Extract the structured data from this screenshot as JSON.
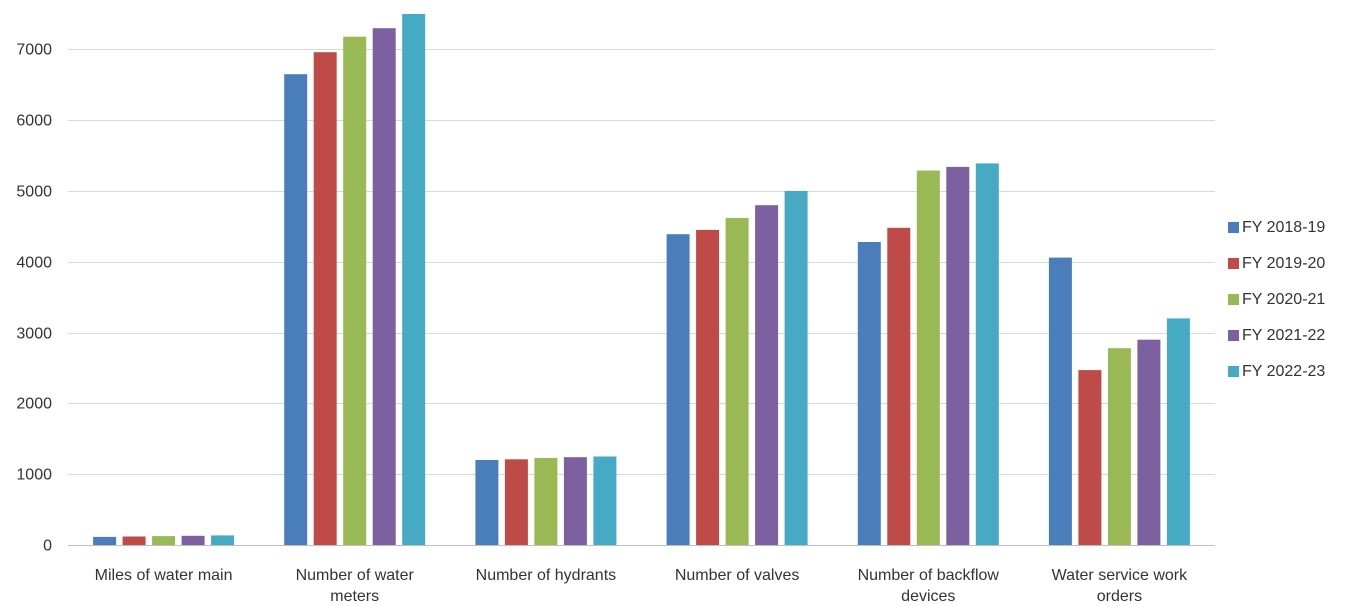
{
  "chart_data": {
    "type": "bar",
    "title": "",
    "xlabel": "",
    "ylabel": "",
    "ylim": [
      0,
      7500
    ],
    "yticks": [
      0,
      1000,
      2000,
      3000,
      4000,
      5000,
      6000,
      7000
    ],
    "grid": true,
    "legend_position": "right",
    "categories": [
      [
        "Miles of water main"
      ],
      [
        "Number of water",
        "meters"
      ],
      [
        "Number of hydrants"
      ],
      [
        "Number of valves"
      ],
      [
        "Number of backflow",
        "devices"
      ],
      [
        "Water service work",
        "orders"
      ]
    ],
    "series": [
      {
        "name": "FY 2018-19",
        "color": "#4A7EBB",
        "values": [
          115,
          6650,
          1200,
          4390,
          4280,
          4060
        ]
      },
      {
        "name": "FY 2019-20",
        "color": "#BE4B48",
        "values": [
          120,
          6960,
          1210,
          4450,
          4480,
          2470
        ]
      },
      {
        "name": "FY 2020-21",
        "color": "#98B954",
        "values": [
          125,
          7180,
          1230,
          4620,
          5290,
          2780
        ]
      },
      {
        "name": "FY 2021-22",
        "color": "#7D60A0",
        "values": [
          130,
          7300,
          1240,
          4800,
          5340,
          2900
        ]
      },
      {
        "name": "FY 2022-23",
        "color": "#46AAC5",
        "values": [
          135,
          7500,
          1250,
          5000,
          5390,
          3200
        ]
      }
    ]
  }
}
